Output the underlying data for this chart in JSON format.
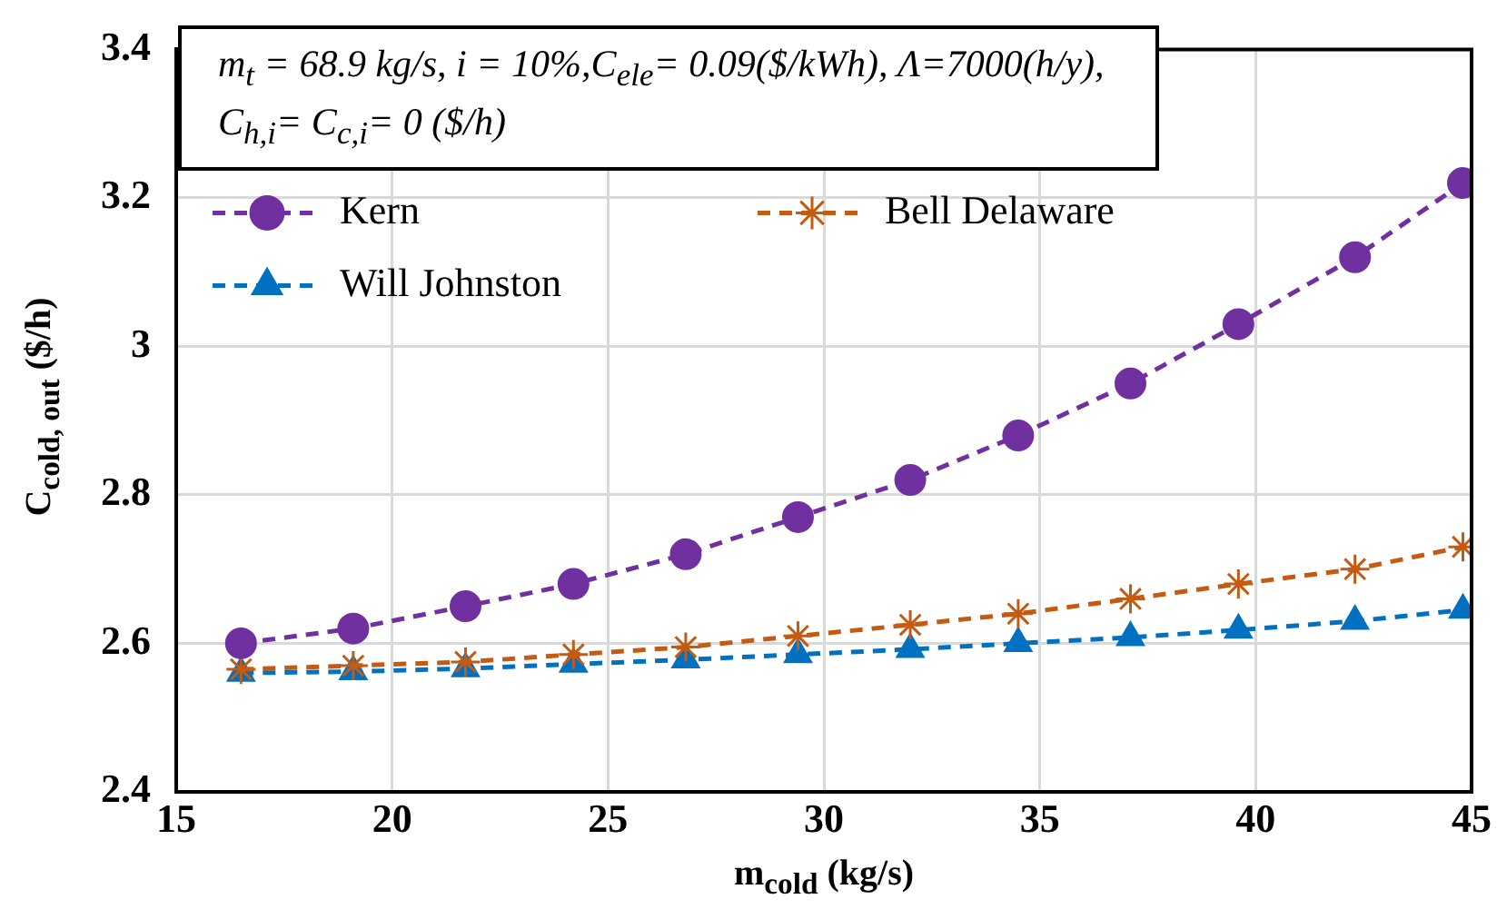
{
  "chart_data": {
    "type": "line",
    "xlabel": "m$_{cold}$ (kg/s)",
    "ylabel": "C$_{cold, out}$ ($/h)",
    "annotations": [
      "m$_{t}$ = 68.9 kg/s, i = 10%,C$_{ele}$= 0.09($/kWh), Λ=7000(h/y), C$_{h,i}$= C$_{c,i}$= 0 ($/h)"
    ],
    "x": [
      16.5,
      19.1,
      21.7,
      24.2,
      26.8,
      29.4,
      32.0,
      34.5,
      37.1,
      39.6,
      42.3,
      44.8
    ],
    "series": [
      {
        "name": "Kern",
        "color": "#7030a0",
        "marker": "circle",
        "line_style": "dashed",
        "values": [
          2.6,
          2.62,
          2.65,
          2.68,
          2.72,
          2.77,
          2.82,
          2.88,
          2.95,
          3.03,
          3.12,
          3.22
        ]
      },
      {
        "name": "Bell Delaware",
        "color": "#c55a11",
        "marker": "cross",
        "line_style": "dashed",
        "values": [
          2.565,
          2.57,
          2.575,
          2.585,
          2.595,
          2.61,
          2.625,
          2.64,
          2.66,
          2.68,
          2.7,
          2.73
        ]
      },
      {
        "name": "Will Johnston",
        "color": "#0070c0",
        "marker": "triangle",
        "line_style": "dashed",
        "values": [
          2.56,
          2.562,
          2.566,
          2.572,
          2.578,
          2.585,
          2.592,
          2.6,
          2.608,
          2.618,
          2.63,
          2.645
        ]
      }
    ],
    "xlim": [
      15,
      45
    ],
    "xticks": [
      15,
      20,
      25,
      30,
      35,
      40,
      45
    ],
    "ylim": [
      2.4,
      3.4
    ],
    "yticks": [
      2.4,
      2.6,
      2.8,
      3,
      3.2,
      3.4
    ],
    "grid": true,
    "legend": "top left"
  }
}
